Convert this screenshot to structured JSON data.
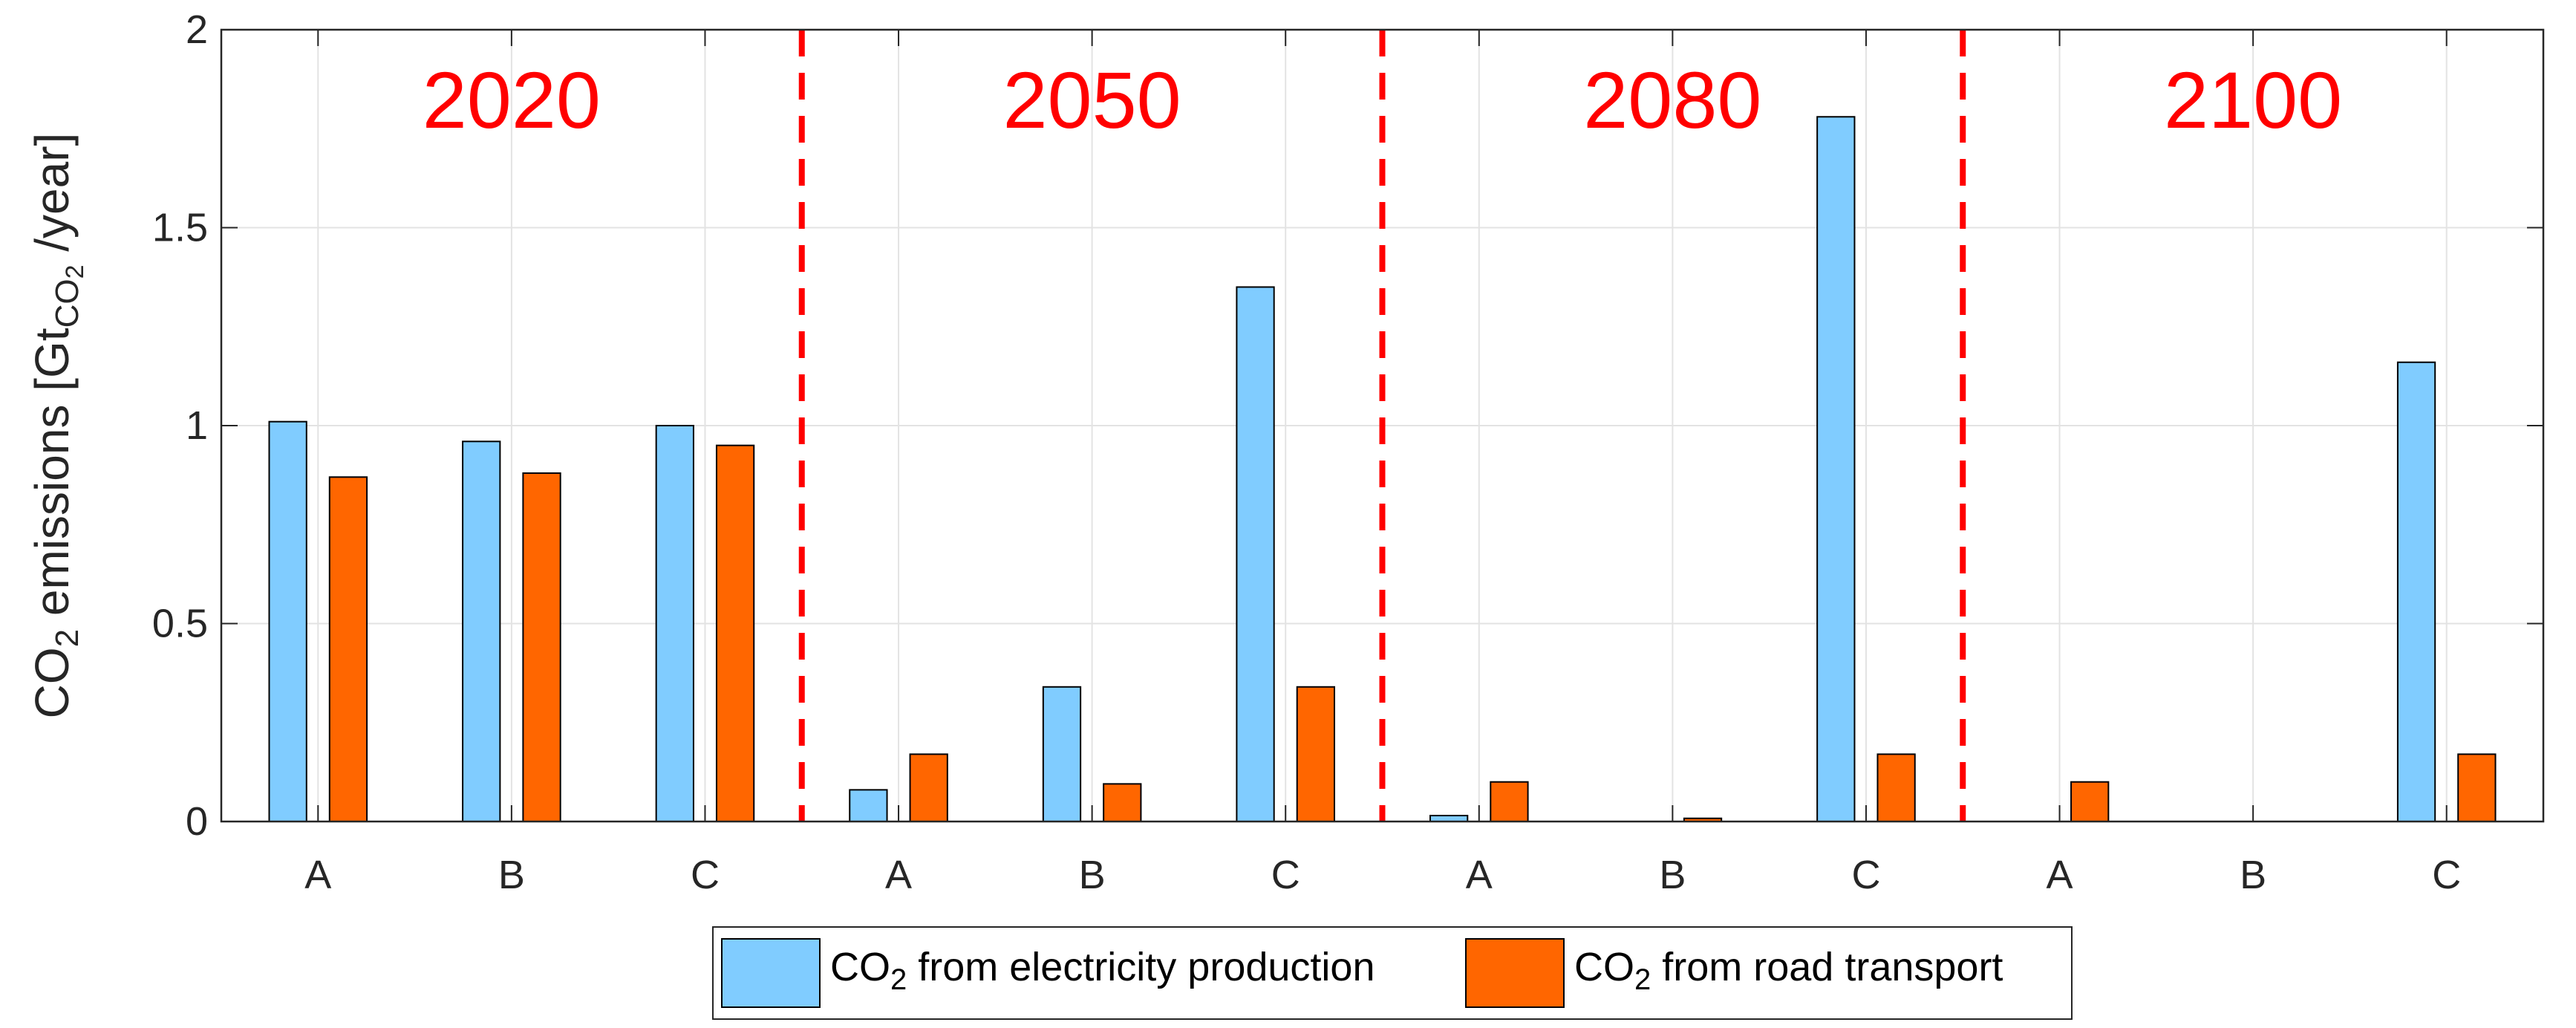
{
  "chart_data": {
    "type": "bar",
    "periods": [
      "2020",
      "2050",
      "2080",
      "2100"
    ],
    "scenarios": [
      "A",
      "B",
      "C"
    ],
    "categories": [
      "A",
      "B",
      "C",
      "A",
      "B",
      "C",
      "A",
      "B",
      "C",
      "A",
      "B",
      "C"
    ],
    "series": [
      {
        "name": "CO2 from electricity production",
        "color": "#80CCFF",
        "values": [
          1.01,
          0.96,
          1.0,
          0.08,
          0.34,
          1.35,
          0.015,
          0.0,
          1.78,
          0.0,
          0.0,
          1.16
        ]
      },
      {
        "name": "CO2 from road transport",
        "color": "#FF6600",
        "values": [
          0.87,
          0.88,
          0.95,
          0.17,
          0.095,
          0.34,
          0.1,
          0.008,
          0.17,
          0.1,
          0.0,
          0.17
        ]
      }
    ],
    "ylim": [
      0,
      2
    ],
    "yticks": [
      "0",
      "0.5",
      "1",
      "1.5",
      "2"
    ],
    "ylabel": {
      "main": "CO",
      "sub": "2",
      "rest": " emissions [Gt",
      "unit_sub": "CO",
      "unit_sub_sub": "2",
      "end": " /year]"
    },
    "legend": [
      {
        "prefix": "CO",
        "sub": "2",
        "suffix": " from electricity production"
      },
      {
        "prefix": "CO",
        "sub": "2",
        "suffix": " from road transport"
      }
    ],
    "legend_position": "bottom-center",
    "separator_color": "#FF0000",
    "grid": true
  }
}
